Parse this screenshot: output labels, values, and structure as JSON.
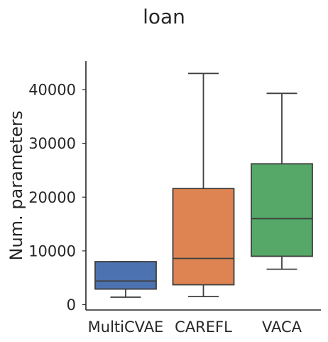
{
  "chart_data": {
    "type": "box",
    "title": "loan",
    "xlabel": "",
    "ylabel": "Num. parameters",
    "ylim": [
      -1000,
      45500
    ],
    "yticks": [
      0,
      10000,
      20000,
      30000,
      40000
    ],
    "ytick_labels": [
      "0",
      "10000",
      "20000",
      "30000",
      "40000"
    ],
    "grid": false,
    "categories": [
      "MultiCVAE",
      "CAREFL",
      "VACA"
    ],
    "boxes": [
      {
        "category": "MultiCVAE",
        "min": 1400,
        "q1": 2900,
        "median": 4400,
        "q3": 8000,
        "max": 8000,
        "color": "#4c72b0"
      },
      {
        "category": "CAREFL",
        "min": 1500,
        "q1": 3700,
        "median": 8600,
        "q3": 21600,
        "max": 43000,
        "color": "#dd8452"
      },
      {
        "category": "VACA",
        "min": 6600,
        "q1": 9000,
        "median": 16000,
        "q3": 26200,
        "max": 39300,
        "color": "#55a868"
      }
    ]
  }
}
